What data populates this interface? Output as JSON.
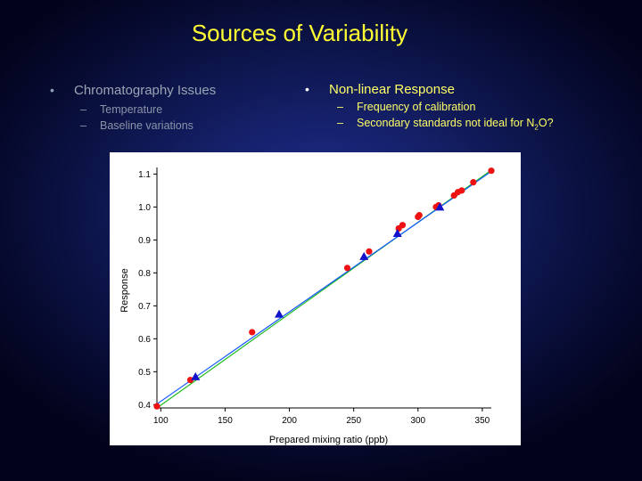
{
  "slide": {
    "title": "Sources of Variability",
    "left": {
      "bullet": "Chromatography Issues",
      "subs": [
        "Temperature",
        "Baseline variations"
      ]
    },
    "right": {
      "bullet": "Non-linear Response",
      "subs": [
        "Frequency of calibration",
        "Secondary standards not ideal for N",
        "2",
        "O?"
      ]
    },
    "bullet_glyph": "•",
    "dash_glyph": "–"
  },
  "chart_data": {
    "type": "scatter",
    "xlabel": "Prepared mixing ratio (ppb)",
    "ylabel": "Response",
    "xlim": [
      97,
      357
    ],
    "ylim": [
      0.39,
      1.12
    ],
    "xticks": [
      100,
      150,
      200,
      250,
      300,
      350
    ],
    "yticks": [
      0.4,
      0.5,
      0.6,
      0.7,
      0.8,
      0.9,
      1.0,
      1.1
    ],
    "ytick_labels": [
      "0.4",
      "0.5",
      "0.6",
      "0.7",
      "0.8",
      "0.9",
      "1.0",
      "1.1"
    ],
    "grid": false,
    "series": [
      {
        "marker": "circle",
        "color": "#ee1111",
        "points": [
          [
            97,
            0.395
          ],
          [
            123,
            0.475
          ],
          [
            171,
            0.62
          ],
          [
            245,
            0.815
          ],
          [
            262,
            0.865
          ],
          [
            285,
            0.935
          ],
          [
            288,
            0.945
          ],
          [
            300,
            0.97
          ],
          [
            301,
            0.975
          ],
          [
            314,
            1.0
          ],
          [
            316,
            1.005
          ],
          [
            328,
            1.035
          ],
          [
            331,
            1.045
          ],
          [
            334,
            1.05
          ],
          [
            343,
            1.075
          ],
          [
            357,
            1.11
          ]
        ]
      },
      {
        "marker": "triangle",
        "color": "#1111cc",
        "points": [
          [
            127,
            0.485
          ],
          [
            192,
            0.675
          ],
          [
            258,
            0.85
          ],
          [
            284,
            0.92
          ],
          [
            317,
            1.0
          ]
        ]
      }
    ],
    "lines": [
      {
        "color": "#22bb22",
        "points": [
          [
            97,
            0.39
          ],
          [
            357,
            1.112
          ]
        ]
      },
      {
        "color": "#1155ff",
        "points": [
          [
            97,
            0.402
          ],
          [
            357,
            1.108
          ]
        ]
      }
    ]
  }
}
